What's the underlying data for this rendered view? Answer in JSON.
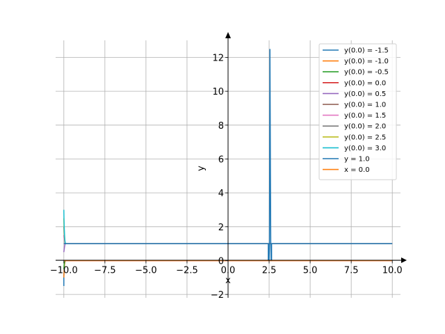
{
  "chart_data": {
    "type": "line",
    "xlabel": "x",
    "ylabel": "y",
    "xlim": [
      -10.5,
      10.5
    ],
    "ylim": [
      -2.2,
      13.5
    ],
    "x_ticks": [
      -10.0,
      -7.5,
      -5.0,
      -2.5,
      0.0,
      2.5,
      5.0,
      7.5,
      10.0
    ],
    "x_tick_labels": [
      "−10.0",
      "−7.5",
      "−5.0",
      "−2.5",
      "0.0",
      "2.5",
      "5.0",
      "7.5",
      "10.0"
    ],
    "y_ticks": [
      -2,
      0,
      2,
      4,
      6,
      8,
      10,
      12
    ],
    "y_tick_labels": [
      "−2",
      "0",
      "2",
      "4",
      "6",
      "8",
      "10",
      "12"
    ],
    "grid": true,
    "legend_position": "top-right",
    "series": [
      {
        "name": "y(0.0) = -1.5",
        "color": "#1f77b4",
        "x": [
          -10.0,
          -10.0,
          -9.98,
          -9.96,
          -9.94,
          -9.92,
          -9.9,
          -9.88
        ],
        "y": [
          -1.5,
          -0.9,
          -0.45,
          -0.2,
          -0.07,
          -0.02,
          0.0,
          0.0
        ]
      },
      {
        "name": "y(0.0) = -1.0",
        "color": "#ff7f0e",
        "x": [
          -10.0,
          -9.98,
          -9.96,
          -9.94,
          -9.92,
          -9.9
        ],
        "y": [
          -1.0,
          -0.55,
          -0.25,
          -0.1,
          -0.03,
          0.0
        ]
      },
      {
        "name": "y(0.0) = -0.5",
        "color": "#2ca02c",
        "x": [
          -10.0,
          -9.98,
          -9.96,
          -9.94,
          -9.92
        ],
        "y": [
          -0.5,
          -0.25,
          -0.1,
          -0.03,
          0.0
        ]
      },
      {
        "name": "y(0.0) = 0.0",
        "color": "#d62728",
        "x": [
          -10.0,
          10.0
        ],
        "y": [
          0.0,
          0.0
        ]
      },
      {
        "name": "y(0.0) = 0.5",
        "color": "#9467bd",
        "x": [
          -10.0,
          -9.98,
          -9.96,
          -9.94,
          -9.92
        ],
        "y": [
          0.5,
          0.65,
          0.8,
          0.9,
          1.0
        ]
      },
      {
        "name": "y(0.0) = 1.0",
        "color": "#8c564b",
        "x": [
          -10.0,
          10.0
        ],
        "y": [
          1.0,
          1.0
        ]
      },
      {
        "name": "y(0.0) = 1.5",
        "color": "#e377c2",
        "x": [
          -10.0,
          -9.99,
          -9.97,
          -9.95,
          -9.93,
          -9.91
        ],
        "y": [
          1.5,
          1.35,
          1.2,
          1.1,
          1.04,
          1.0
        ]
      },
      {
        "name": "y(0.0) = 2.0",
        "color": "#7f7f7f",
        "x": [
          -10.0,
          -9.99,
          -9.97,
          -9.95,
          -9.93,
          -9.91
        ],
        "y": [
          2.0,
          1.7,
          1.4,
          1.2,
          1.08,
          1.0
        ]
      },
      {
        "name": "y(0.0) = 2.5",
        "color": "#bcbd22",
        "x": [
          -10.0,
          -9.99,
          -9.97,
          -9.95,
          -9.93,
          -9.91
        ],
        "y": [
          2.5,
          2.05,
          1.6,
          1.3,
          1.1,
          1.0
        ]
      },
      {
        "name": "y(0.0) = 3.0",
        "color": "#17becf",
        "x": [
          -10.0,
          -9.99,
          -9.97,
          -9.95,
          -9.93,
          -9.91,
          -9.89
        ],
        "y": [
          3.0,
          2.4,
          1.8,
          1.4,
          1.15,
          1.04,
          1.0
        ]
      },
      {
        "name": "y = 1.0",
        "color": "#1f77b4",
        "x": [
          -10.0,
          2.45,
          2.45,
          2.5,
          2.52,
          2.55,
          2.58,
          2.6,
          2.62,
          2.65,
          2.65,
          10.0
        ],
        "y": [
          1.0,
          1.0,
          0.0,
          0.0,
          1.0,
          12.5,
          5.0,
          1.0,
          0.0,
          0.0,
          1.0,
          1.0
        ]
      },
      {
        "name": "x = 0.0",
        "color": "#ff7f0e",
        "x": [
          -10.0,
          10.0
        ],
        "y": [
          0.0,
          0.0
        ]
      }
    ]
  }
}
